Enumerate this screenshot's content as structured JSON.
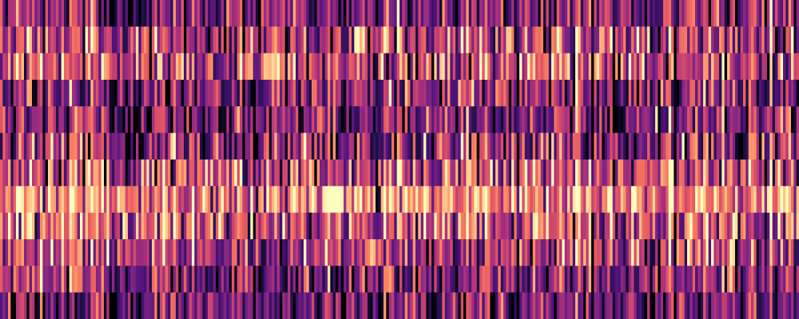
{
  "chart_data": {
    "type": "heatmap",
    "title": "",
    "xlabel": "",
    "ylabel": "",
    "grid": false,
    "legend": "none",
    "colormap": "magma",
    "colormap_stops": [
      "#000004",
      "#1c1044",
      "#4f127b",
      "#812581",
      "#b5367a",
      "#e55964",
      "#fb8761",
      "#fec287",
      "#fcfdbf"
    ],
    "value_range": [
      0,
      1
    ],
    "n_rows": 12,
    "n_cols": 300,
    "row_mean_intensity": [
      0.38,
      0.5,
      0.54,
      0.4,
      0.36,
      0.42,
      0.56,
      0.74,
      0.6,
      0.5,
      0.38,
      0.32
    ],
    "row_spread": [
      0.26,
      0.3,
      0.32,
      0.28,
      0.26,
      0.28,
      0.3,
      0.26,
      0.3,
      0.3,
      0.26,
      0.24
    ],
    "seed": 20240611
  }
}
